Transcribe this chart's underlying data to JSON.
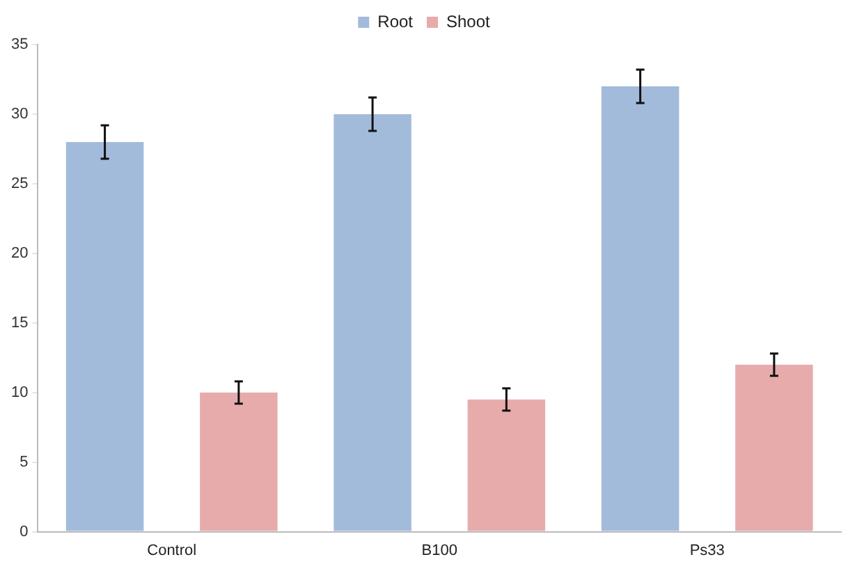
{
  "chart_data": {
    "type": "bar",
    "categories": [
      "Control",
      "B100",
      "Ps33"
    ],
    "series": [
      {
        "name": "Root",
        "color": "#a3bbdb",
        "values": [
          28,
          30,
          32
        ],
        "errors": [
          1.2,
          1.2,
          1.2
        ]
      },
      {
        "name": "Shoot",
        "color": "#e8abab",
        "values": [
          10,
          9.5,
          12
        ],
        "errors": [
          0.8,
          0.8,
          0.8
        ]
      }
    ],
    "ylim": [
      0,
      35
    ],
    "yticks": [
      0,
      5,
      10,
      15,
      20,
      25,
      30,
      35
    ],
    "grid": false,
    "legend": "top"
  }
}
